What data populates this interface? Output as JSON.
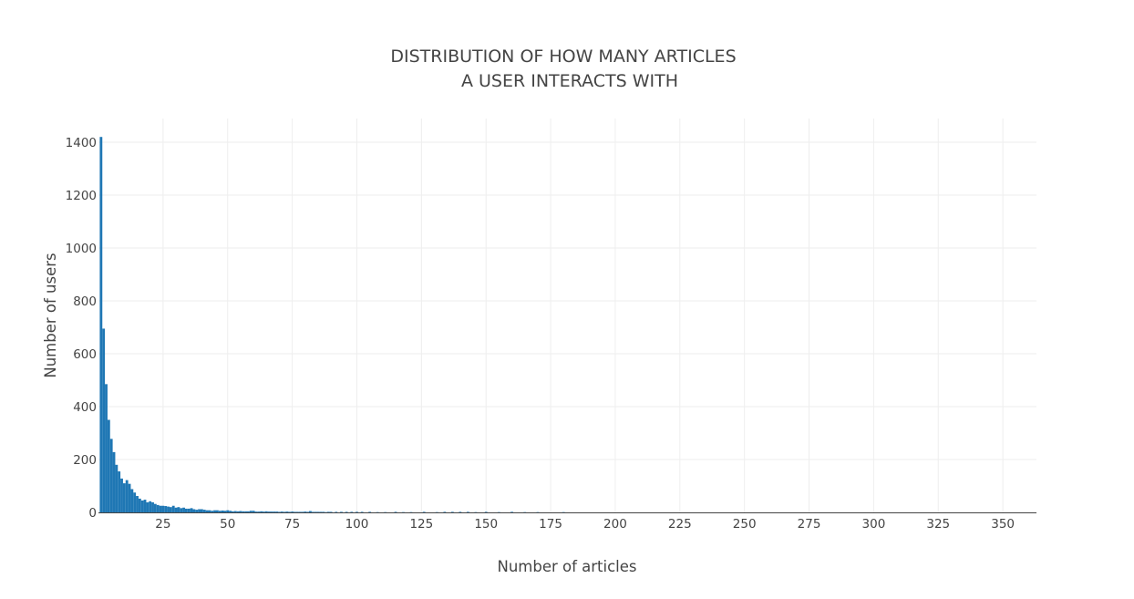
{
  "chart_data": {
    "type": "bar",
    "title_line1": "DISTRIBUTION OF HOW MANY ARTICLES",
    "title_line2": "A USER INTERACTS WITH",
    "xlabel": "Number of articles",
    "ylabel": "Number of users",
    "xlim": [
      0,
      363
    ],
    "ylim": [
      0,
      1400
    ],
    "x_ticks": [
      25,
      50,
      75,
      100,
      125,
      150,
      175,
      200,
      225,
      250,
      275,
      300,
      325,
      350
    ],
    "y_ticks": [
      0,
      200,
      400,
      600,
      800,
      1000,
      1200,
      1400
    ],
    "bar_color": "#1f77b4",
    "grid": true,
    "legend": "none",
    "x": [
      1,
      2,
      3,
      4,
      5,
      6,
      7,
      8,
      9,
      10,
      11,
      12,
      13,
      14,
      15,
      16,
      17,
      18,
      19,
      20,
      21,
      22,
      23,
      24,
      25,
      26,
      27,
      28,
      29,
      30,
      31,
      32,
      33,
      34,
      35,
      36,
      37,
      38,
      39,
      40,
      41,
      42,
      43,
      44,
      45,
      46,
      47,
      48,
      49,
      50,
      51,
      52,
      53,
      54,
      55,
      56,
      57,
      58,
      59,
      60,
      61,
      62,
      63,
      64,
      65,
      66,
      67,
      68,
      69,
      70,
      71,
      72,
      73,
      74,
      75,
      76,
      77,
      78,
      79,
      80,
      81,
      82,
      83,
      84,
      85,
      86,
      87,
      88,
      89,
      90,
      92,
      94,
      96,
      98,
      100,
      102,
      105,
      108,
      111,
      115,
      118,
      121,
      126,
      131,
      134,
      137,
      140,
      143,
      146,
      150,
      155,
      160,
      165,
      170,
      180
    ],
    "values": [
      1420,
      695,
      485,
      350,
      278,
      228,
      180,
      155,
      128,
      110,
      122,
      108,
      88,
      75,
      62,
      52,
      45,
      48,
      38,
      42,
      38,
      32,
      28,
      25,
      25,
      24,
      22,
      20,
      25,
      18,
      20,
      16,
      18,
      14,
      14,
      16,
      12,
      10,
      12,
      12,
      10,
      8,
      8,
      6,
      8,
      8,
      6,
      7,
      6,
      8,
      6,
      4,
      5,
      4,
      5,
      4,
      4,
      4,
      6,
      6,
      3,
      3,
      4,
      3,
      4,
      3,
      3,
      3,
      3,
      2,
      3,
      2,
      3,
      2,
      3,
      2,
      2,
      2,
      2,
      3,
      2,
      5,
      2,
      2,
      2,
      2,
      2,
      1,
      2,
      2,
      2,
      2,
      2,
      2,
      2,
      2,
      2,
      1,
      1,
      2,
      1,
      1,
      2,
      1,
      2,
      2,
      2,
      2,
      1,
      2,
      1,
      2,
      1,
      1,
      1
    ]
  }
}
